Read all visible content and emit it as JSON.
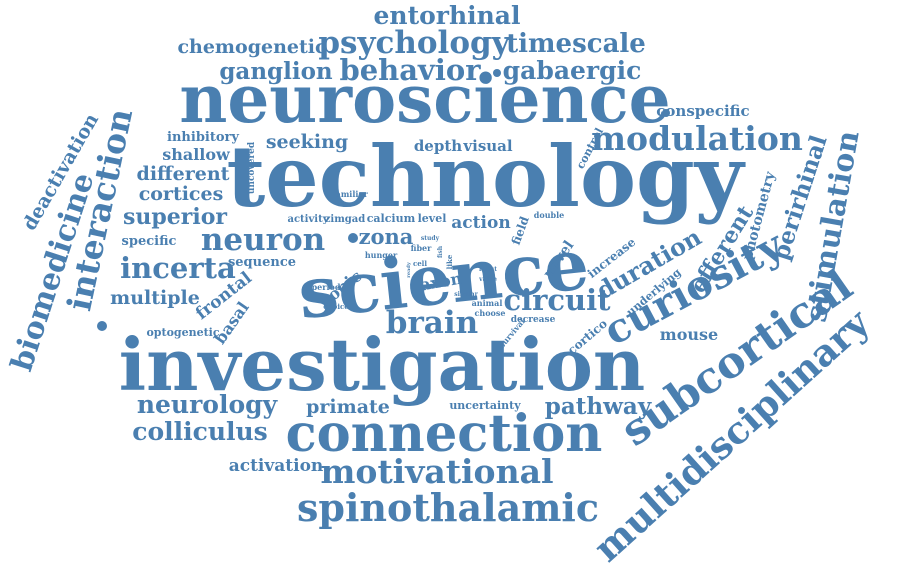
{
  "cloud": {
    "color": "#4a7fb0",
    "background": "#ffffff",
    "words": [
      "entorhinal",
      "chemogenetic",
      "psychology",
      "timescale",
      "ganglion",
      "behavior",
      "gabaergic",
      "neuroscience",
      "conspecific",
      "technology",
      "modulation",
      "seeking",
      "depth",
      "visual",
      "inhibitory",
      "shallow",
      "different",
      "cortices",
      "superior",
      "specific",
      "uncovered",
      "familiar",
      "activity",
      "zimgad",
      "calcium",
      "level",
      "action",
      "field",
      "double",
      "neuron",
      "zona",
      "hunger",
      "fiber",
      "study",
      "fish",
      "ready",
      "cell",
      "like",
      "science",
      "increase",
      "efferent",
      "photometry",
      "perirhinal",
      "stimulation",
      "control",
      "novel",
      "sequence",
      "incerta",
      "multiple",
      "frontal",
      "basal",
      "period",
      "topic",
      "choice",
      "axon",
      "input",
      "value",
      "brain",
      "circuit",
      "duration",
      "curiosity",
      "underlying",
      "optogenetic",
      "similar",
      "animal",
      "choose",
      "decrease",
      "survival",
      "cortico",
      "mouse",
      "investigation",
      "subcortical",
      "multidisciplinary",
      "neurology",
      "primate",
      "uncertainty",
      "pathway",
      "colliculus",
      "connection",
      "activation",
      "motivational",
      "spinothalamic",
      "deactivation",
      "biomedicine",
      "interaction",
      "hub",
      "sc",
      "di"
    ]
  }
}
